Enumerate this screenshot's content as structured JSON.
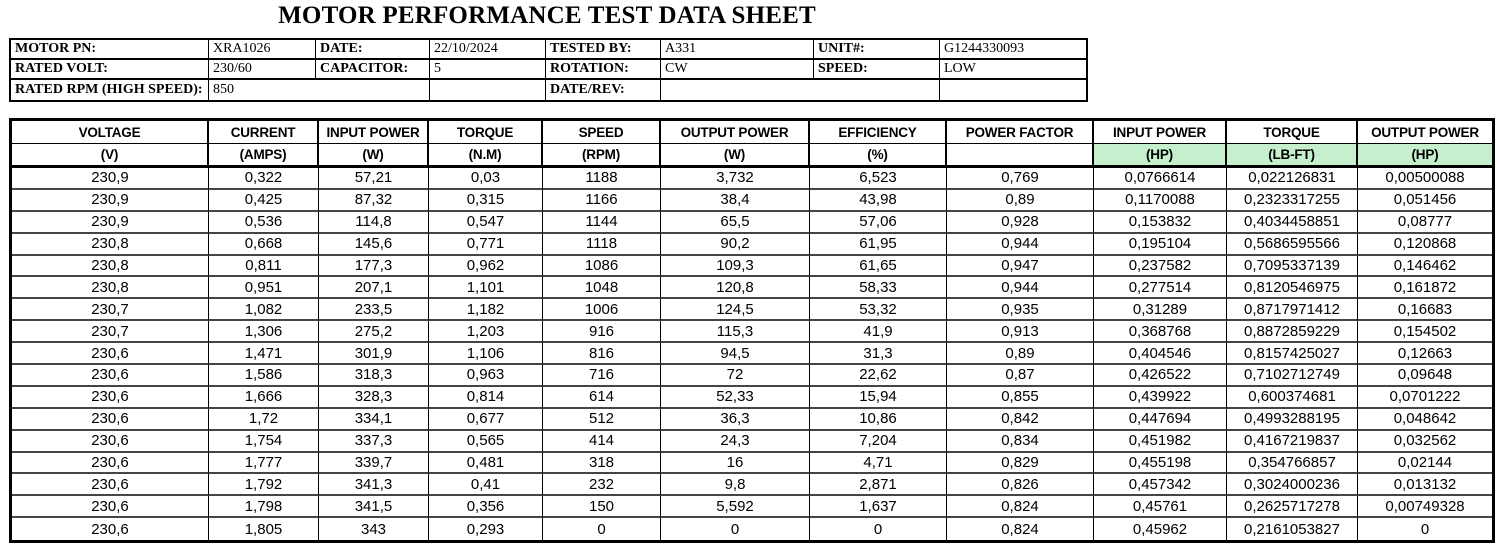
{
  "title": "MOTOR PERFORMANCE TEST DATA SHEET",
  "colors": {
    "highlight_green": "#c6efce",
    "grid_line": "#000000",
    "row_line": "#454545"
  },
  "info": {
    "rows": [
      {
        "cells": [
          {
            "t": "MOTOR PN:"
          },
          {
            "t": "XRA1026"
          },
          {
            "t": "DATE:"
          },
          {
            "t": "22/10/2024"
          },
          {
            "t": "TESTED BY:"
          },
          {
            "t": "A331"
          },
          {
            "t": "UNIT#:"
          },
          {
            "t": "G1244330093"
          }
        ]
      },
      {
        "cells": [
          {
            "t": "RATED VOLT:"
          },
          {
            "t": "230/60"
          },
          {
            "t": "CAPACITOR:"
          },
          {
            "t": "5"
          },
          {
            "t": "ROTATION:"
          },
          {
            "t": "CW"
          },
          {
            "t": "SPEED:"
          },
          {
            "t": "LOW"
          }
        ]
      },
      {
        "cells": [
          {
            "t": "RATED RPM (HIGH SPEED):"
          },
          {
            "t": "850"
          },
          {
            "t": ""
          },
          {
            "t": "DATE/REV:"
          },
          {
            "t": ""
          },
          {
            "t": ""
          }
        ]
      }
    ]
  },
  "table": {
    "columns": [
      {
        "name": "VOLTAGE",
        "unit": "(V)",
        "highlight": false
      },
      {
        "name": "CURRENT",
        "unit": "(AMPS)",
        "highlight": false
      },
      {
        "name": "INPUT POWER",
        "unit": "(W)",
        "highlight": false
      },
      {
        "name": "TORQUE",
        "unit": "(N.M)",
        "highlight": false
      },
      {
        "name": "SPEED",
        "unit": "(RPM)",
        "highlight": false
      },
      {
        "name": "OUTPUT POWER",
        "unit": "(W)",
        "highlight": false
      },
      {
        "name": "EFFICIENCY",
        "unit": "(%)",
        "highlight": false
      },
      {
        "name": "POWER FACTOR",
        "unit": "",
        "highlight": false
      },
      {
        "name": "INPUT POWER",
        "unit": "(HP)",
        "highlight": true
      },
      {
        "name": "TORQUE",
        "unit": "(LB-FT)",
        "highlight": true
      },
      {
        "name": "OUTPUT POWER",
        "unit": "(HP)",
        "highlight": true
      }
    ],
    "rows": [
      [
        "230,9",
        "0,322",
        "57,21",
        "0,03",
        "1188",
        "3,732",
        "6,523",
        "0,769",
        "0,0766614",
        "0,022126831",
        "0,00500088"
      ],
      [
        "230,9",
        "0,425",
        "87,32",
        "0,315",
        "1166",
        "38,4",
        "43,98",
        "0,89",
        "0,1170088",
        "0,2323317255",
        "0,051456"
      ],
      [
        "230,9",
        "0,536",
        "114,8",
        "0,547",
        "1144",
        "65,5",
        "57,06",
        "0,928",
        "0,153832",
        "0,4034458851",
        "0,08777"
      ],
      [
        "230,8",
        "0,668",
        "145,6",
        "0,771",
        "1118",
        "90,2",
        "61,95",
        "0,944",
        "0,195104",
        "0,5686595566",
        "0,120868"
      ],
      [
        "230,8",
        "0,811",
        "177,3",
        "0,962",
        "1086",
        "109,3",
        "61,65",
        "0,947",
        "0,237582",
        "0,7095337139",
        "0,146462"
      ],
      [
        "230,8",
        "0,951",
        "207,1",
        "1,101",
        "1048",
        "120,8",
        "58,33",
        "0,944",
        "0,277514",
        "0,8120546975",
        "0,161872"
      ],
      [
        "230,7",
        "1,082",
        "233,5",
        "1,182",
        "1006",
        "124,5",
        "53,32",
        "0,935",
        "0,31289",
        "0,8717971412",
        "0,16683"
      ],
      [
        "230,7",
        "1,306",
        "275,2",
        "1,203",
        "916",
        "115,3",
        "41,9",
        "0,913",
        "0,368768",
        "0,8872859229",
        "0,154502"
      ],
      [
        "230,6",
        "1,471",
        "301,9",
        "1,106",
        "816",
        "94,5",
        "31,3",
        "0,89",
        "0,404546",
        "0,8157425027",
        "0,12663"
      ],
      [
        "230,6",
        "1,586",
        "318,3",
        "0,963",
        "716",
        "72",
        "22,62",
        "0,87",
        "0,426522",
        "0,7102712749",
        "0,09648"
      ],
      [
        "230,6",
        "1,666",
        "328,3",
        "0,814",
        "614",
        "52,33",
        "15,94",
        "0,855",
        "0,439922",
        "0,600374681",
        "0,0701222"
      ],
      [
        "230,6",
        "1,72",
        "334,1",
        "0,677",
        "512",
        "36,3",
        "10,86",
        "0,842",
        "0,447694",
        "0,4993288195",
        "0,048642"
      ],
      [
        "230,6",
        "1,754",
        "337,3",
        "0,565",
        "414",
        "24,3",
        "7,204",
        "0,834",
        "0,451982",
        "0,4167219837",
        "0,032562"
      ],
      [
        "230,6",
        "1,777",
        "339,7",
        "0,481",
        "318",
        "16",
        "4,71",
        "0,829",
        "0,455198",
        "0,354766857",
        "0,02144"
      ],
      [
        "230,6",
        "1,792",
        "341,3",
        "0,41",
        "232",
        "9,8",
        "2,871",
        "0,826",
        "0,457342",
        "0,3024000236",
        "0,013132"
      ],
      [
        "230,6",
        "1,798",
        "341,5",
        "0,356",
        "150",
        "5,592",
        "1,637",
        "0,824",
        "0,45761",
        "0,2625717278",
        "0,00749328"
      ],
      [
        "230,6",
        "1,805",
        "343",
        "0,293",
        "0",
        "0",
        "0",
        "0,824",
        "0,45962",
        "0,2161053827",
        "0"
      ]
    ]
  }
}
